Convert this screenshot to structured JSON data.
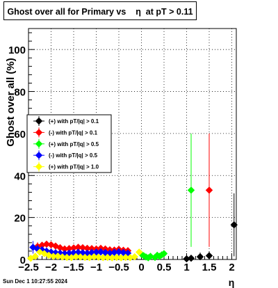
{
  "title": "Ghost over all for Primary vs    η  at pT > 0.11",
  "timestamp": "Sun Dec  1 10:27:55 2024",
  "chart_data": {
    "type": "scatter",
    "title": "Ghost over all for Primary vs    η  at pT > 0.11",
    "xlabel": "η",
    "ylabel": "Ghost over all (%)",
    "xlim": [
      -2.5,
      2.1
    ],
    "ylim": [
      0,
      110
    ],
    "xticks": [
      "−2.5",
      "−2",
      "−1.5",
      "−1",
      "−0.5",
      "0",
      "0.5",
      "1",
      "1.5",
      "2"
    ],
    "yticks": [
      "0",
      "20",
      "40",
      "60",
      "80",
      "100"
    ],
    "grid": true,
    "legend_position": "middle-left",
    "series": [
      {
        "name": "(+) with pT/|q| > 0.1",
        "color": "#000000",
        "points": [
          [
            1.0,
            0.3,
            1
          ],
          [
            1.1,
            0.6,
            1
          ],
          [
            1.3,
            1.3,
            2
          ],
          [
            1.5,
            1.8,
            2
          ],
          [
            2.05,
            16.5,
            15
          ]
        ]
      },
      {
        "name": "(-) with pT/|q| > 0.1",
        "color": "#ff0000",
        "points": [
          [
            -2.3,
            6.2,
            2
          ],
          [
            -2.2,
            6.8,
            1.5
          ],
          [
            -2.1,
            7.3,
            1
          ],
          [
            -2.0,
            7.0,
            1
          ],
          [
            -1.9,
            6.4,
            1
          ],
          [
            -1.8,
            5.6,
            1
          ],
          [
            -1.7,
            5.0,
            1
          ],
          [
            -1.6,
            5.2,
            1
          ],
          [
            -1.5,
            5.5,
            1
          ],
          [
            -1.4,
            5.8,
            1
          ],
          [
            -1.3,
            5.6,
            1
          ],
          [
            -1.2,
            5.3,
            1
          ],
          [
            -1.1,
            5.2,
            1
          ],
          [
            -1.0,
            5.0,
            1
          ],
          [
            -0.9,
            5.3,
            1
          ],
          [
            -0.8,
            5.0,
            1
          ],
          [
            -0.7,
            4.6,
            1
          ],
          [
            -0.6,
            4.5,
            1
          ],
          [
            -0.5,
            4.8,
            1
          ],
          [
            -0.4,
            4.4,
            1
          ],
          [
            -0.3,
            4.2,
            1
          ],
          [
            1.5,
            33.0,
            27
          ]
        ]
      },
      {
        "name": "(+) with pT/|q| > 0.5",
        "color": "#00ff00",
        "points": [
          [
            0.0,
            2.5,
            1.5
          ],
          [
            0.05,
            1.8,
            1
          ],
          [
            0.1,
            1.2,
            1
          ],
          [
            0.15,
            0.8,
            1
          ],
          [
            0.2,
            1.5,
            1
          ],
          [
            0.3,
            1.0,
            1
          ],
          [
            0.35,
            2.0,
            1
          ],
          [
            0.4,
            1.5,
            1
          ],
          [
            0.45,
            2.2,
            1
          ],
          [
            0.5,
            2.8,
            1
          ],
          [
            1.1,
            33.0,
            27
          ]
        ]
      },
      {
        "name": "(-) with pT/|q| > 0.5",
        "color": "#0000ff",
        "points": [
          [
            -2.4,
            5.8,
            3
          ],
          [
            -2.3,
            5.0,
            2
          ],
          [
            -2.2,
            4.6,
            1.5
          ],
          [
            -2.1,
            4.0,
            1
          ],
          [
            -2.0,
            3.5,
            1
          ],
          [
            -1.9,
            3.2,
            1
          ],
          [
            -1.8,
            3.0,
            1
          ],
          [
            -1.7,
            2.8,
            1
          ],
          [
            -1.6,
            3.0,
            1
          ],
          [
            -1.5,
            3.2,
            1
          ],
          [
            -1.4,
            3.4,
            1
          ],
          [
            -1.3,
            3.2,
            1
          ],
          [
            -1.2,
            3.0,
            1
          ],
          [
            -1.1,
            3.3,
            1
          ],
          [
            -1.0,
            3.5,
            1
          ],
          [
            -0.9,
            3.6,
            1
          ],
          [
            -0.8,
            3.3,
            1
          ],
          [
            -0.7,
            3.0,
            1
          ],
          [
            -0.6,
            3.4,
            1
          ],
          [
            -0.5,
            3.6,
            1
          ],
          [
            -0.4,
            3.3,
            1
          ],
          [
            -0.3,
            3.0,
            1
          ]
        ]
      },
      {
        "name": "(+) with pT/|q| > 1.0",
        "color": "#ffff00",
        "points": [
          [
            -2.45,
            0.6,
            1
          ],
          [
            -2.35,
            1.5,
            1
          ],
          [
            -2.25,
            3.5,
            1.5
          ],
          [
            -2.15,
            2.8,
            1
          ],
          [
            -2.05,
            2.0,
            1
          ],
          [
            -1.95,
            1.5,
            1
          ],
          [
            -1.85,
            1.6,
            1
          ],
          [
            -1.75,
            1.2,
            1
          ],
          [
            -1.65,
            1.0,
            1
          ],
          [
            -1.55,
            0.9,
            1
          ],
          [
            -1.45,
            1.4,
            1
          ],
          [
            -1.35,
            1.2,
            1
          ],
          [
            -1.25,
            1.0,
            1
          ],
          [
            -1.15,
            0.9,
            1
          ],
          [
            -1.05,
            1.3,
            1
          ],
          [
            -0.95,
            1.1,
            1
          ],
          [
            -0.85,
            0.9,
            1
          ],
          [
            -0.75,
            1.0,
            1
          ],
          [
            -0.65,
            0.8,
            1
          ],
          [
            -0.55,
            1.0,
            1
          ],
          [
            -0.45,
            0.8,
            1
          ],
          [
            -0.35,
            1.0,
            1
          ],
          [
            -0.25,
            0.9,
            1
          ],
          [
            -0.15,
            1.3,
            1
          ],
          [
            -0.05,
            3.5,
            1.5
          ]
        ]
      }
    ]
  }
}
